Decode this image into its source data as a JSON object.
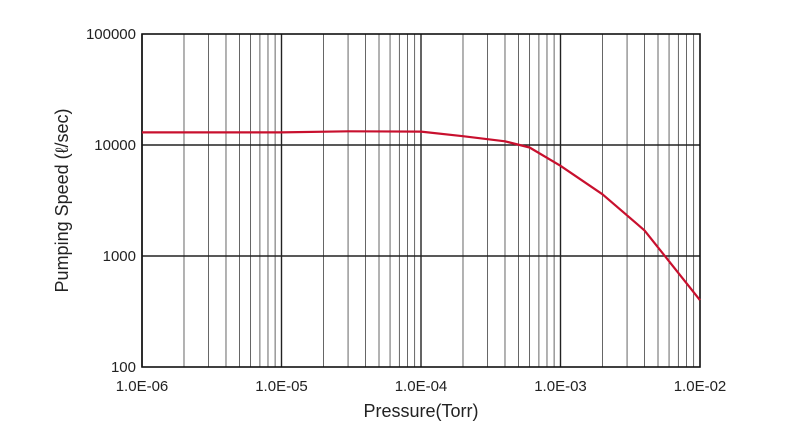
{
  "chart_data": {
    "type": "line",
    "xlabel": "Pressure(Torr)",
    "ylabel": "Pumping Speed (ℓ/sec)",
    "xscale": "log",
    "yscale": "log",
    "xlim": [
      1e-06,
      0.01
    ],
    "ylim": [
      100,
      100000
    ],
    "grid": true,
    "x_ticks": [
      "1.0E-06",
      "1.0E-05",
      "1.0E-04",
      "1.0E-03",
      "1.0E-02"
    ],
    "y_ticks": [
      "100",
      "1000",
      "10000",
      "100000"
    ],
    "series": [
      {
        "color": "#c8102e",
        "points": [
          [
            1e-06,
            13000
          ],
          [
            1e-05,
            13000
          ],
          [
            3e-05,
            13300
          ],
          [
            0.0001,
            13200
          ],
          [
            0.0002,
            12000
          ],
          [
            0.0004,
            10800
          ],
          [
            0.0006,
            9500
          ],
          [
            0.001,
            6500
          ],
          [
            0.002,
            3600
          ],
          [
            0.004,
            1700
          ],
          [
            0.01,
            400
          ]
        ]
      }
    ]
  }
}
